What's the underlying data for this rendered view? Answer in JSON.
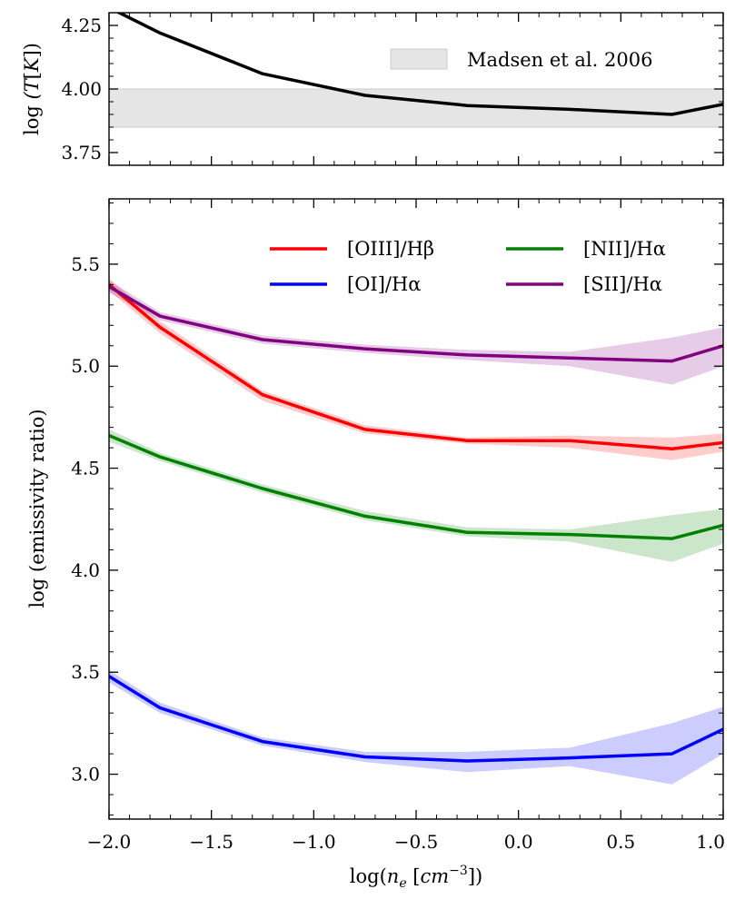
{
  "chart_data": [
    {
      "type": "line",
      "panel": "top",
      "ylabel": "log (T[K])",
      "xlim": [
        -2.0,
        1.0
      ],
      "ylim": [
        3.7,
        4.3
      ],
      "yticks": [
        {
          "value": 3.75,
          "label": "3.75"
        },
        {
          "value": 4.0,
          "label": "4.00"
        },
        {
          "value": 4.25,
          "label": "4.25"
        }
      ],
      "band": {
        "label": "Madsen et al. 2006",
        "ymin": 3.85,
        "ymax": 4.0,
        "color": "#e5e5e5"
      },
      "series": [
        {
          "name": "temperature",
          "color": "#000000",
          "x": [
            -2.0,
            -1.75,
            -1.25,
            -0.75,
            -0.25,
            0.25,
            0.75,
            1.0
          ],
          "y": [
            4.32,
            4.22,
            4.06,
            3.975,
            3.935,
            3.92,
            3.9,
            3.94
          ]
        }
      ]
    },
    {
      "type": "line",
      "panel": "bottom",
      "xlabel": "log(n_e [cm^-3])",
      "ylabel": "log (emissivity ratio)",
      "xlim": [
        -2.0,
        1.0
      ],
      "ylim": [
        2.78,
        5.82
      ],
      "xticks": [
        {
          "value": -2.0,
          "label": "−2.0"
        },
        {
          "value": -1.5,
          "label": "−1.5"
        },
        {
          "value": -1.0,
          "label": "−1.0"
        },
        {
          "value": -0.5,
          "label": "−0.5"
        },
        {
          "value": 0.0,
          "label": "0.0"
        },
        {
          "value": 0.5,
          "label": "0.5"
        },
        {
          "value": 1.0,
          "label": "1.0"
        }
      ],
      "yticks": [
        {
          "value": 3.0,
          "label": "3.0"
        },
        {
          "value": 3.5,
          "label": "3.5"
        },
        {
          "value": 4.0,
          "label": "4.0"
        },
        {
          "value": 4.5,
          "label": "4.5"
        },
        {
          "value": 5.0,
          "label": "5.0"
        },
        {
          "value": 5.5,
          "label": "5.5"
        }
      ],
      "legend_position": "top-right",
      "series": [
        {
          "name": "[OIII]/Hβ",
          "color": "#ff0000",
          "x": [
            -2.0,
            -1.75,
            -1.25,
            -0.75,
            -0.25,
            0.25,
            0.75,
            1.0
          ],
          "y": [
            5.4,
            5.19,
            4.86,
            4.69,
            4.635,
            4.635,
            4.595,
            4.625
          ],
          "lower": [
            5.37,
            5.16,
            4.83,
            4.67,
            4.62,
            4.6,
            4.54,
            4.58
          ],
          "upper": [
            5.43,
            5.22,
            4.88,
            4.71,
            4.65,
            4.66,
            4.65,
            4.67
          ]
        },
        {
          "name": "[NII]/Hα",
          "color": "#008000",
          "x": [
            -2.0,
            -1.75,
            -1.25,
            -0.75,
            -0.25,
            0.25,
            0.75,
            1.0
          ],
          "y": [
            4.66,
            4.555,
            4.4,
            4.265,
            4.185,
            4.175,
            4.155,
            4.22
          ],
          "lower": [
            4.63,
            4.535,
            4.38,
            4.245,
            4.165,
            4.14,
            4.04,
            4.13
          ],
          "upper": [
            4.69,
            4.575,
            4.42,
            4.29,
            4.21,
            4.2,
            4.27,
            4.3
          ]
        },
        {
          "name": "[OI]/Hα",
          "color": "#0000ff",
          "x": [
            -2.0,
            -1.75,
            -1.25,
            -0.75,
            -0.25,
            0.25,
            0.75,
            1.0
          ],
          "y": [
            3.48,
            3.325,
            3.16,
            3.085,
            3.065,
            3.08,
            3.1,
            3.22
          ],
          "lower": [
            3.45,
            3.3,
            3.14,
            3.06,
            3.01,
            3.04,
            2.95,
            3.1
          ],
          "upper": [
            3.51,
            3.35,
            3.18,
            3.11,
            3.11,
            3.13,
            3.25,
            3.33
          ]
        },
        {
          "name": "[SII]/Hα",
          "color": "#800080",
          "x": [
            -2.0,
            -1.75,
            -1.25,
            -0.75,
            -0.25,
            0.25,
            0.75,
            1.0
          ],
          "y": [
            5.39,
            5.245,
            5.13,
            5.085,
            5.055,
            5.04,
            5.025,
            5.1
          ],
          "lower": [
            5.36,
            5.225,
            5.11,
            5.065,
            5.03,
            5.0,
            4.91,
            5.0
          ],
          "upper": [
            5.42,
            5.265,
            5.15,
            5.105,
            5.08,
            5.07,
            5.14,
            5.19
          ]
        }
      ]
    }
  ]
}
